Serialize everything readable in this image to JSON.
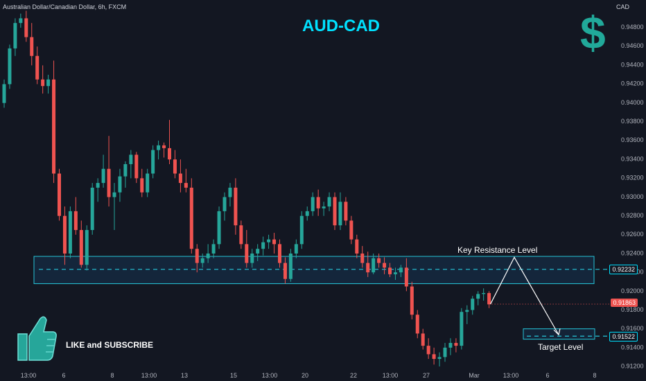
{
  "header": {
    "symbol": "Australian Dollar/Canadian Dollar, 6h, FXCM",
    "currency": "CAD"
  },
  "title": "AUD-CAD",
  "dollar_glyph": "$",
  "like_text": "LIKE and SUBSCRIBE",
  "annotations": {
    "resistance": "Key Resistance Level",
    "target": "Target Level"
  },
  "tags": {
    "resistance_value": "0.92232",
    "current_value": "0.91863",
    "target_value": "0.91522"
  },
  "colors": {
    "bg": "#131722",
    "up": "#26a69a",
    "down": "#ef5350",
    "zone": "#1e6a7a",
    "title": "#00e1ff",
    "dollar": "#21a99a"
  },
  "icons": [
    "thumbs-up-icon",
    "dollar-icon"
  ],
  "chart_data": {
    "type": "candlestick",
    "title": "AUD-CAD",
    "ylim": [
      0.9112,
      0.95
    ],
    "yticks": [
      "0.94800",
      "0.94600",
      "0.94400",
      "0.94200",
      "0.94000",
      "0.93800",
      "0.93600",
      "0.93400",
      "0.93200",
      "0.93000",
      "0.92800",
      "0.92600",
      "0.92400",
      "0.92200",
      "0.92000",
      "0.91800",
      "0.91600",
      "0.91400",
      "0.91200"
    ],
    "xticks": [
      "13:00",
      "6",
      "8",
      "13:00",
      "13",
      "15",
      "13:00",
      "20",
      "22",
      "13:00",
      "27",
      "Mar",
      "13:00",
      "6",
      "8"
    ],
    "resistance_zone": [
      0.9208,
      0.9237
    ],
    "resistance_line": 0.92232,
    "target_zone": [
      0.9149,
      0.916
    ],
    "target_line": 0.91522,
    "current_price": 0.91863,
    "projection": [
      [
        0.91863,
        0.9236
      ],
      [
        0.9236,
        0.91522
      ]
    ],
    "candles": [
      [
        0.94,
        0.9425,
        0.9395,
        0.942
      ],
      [
        0.942,
        0.9462,
        0.9415,
        0.9458
      ],
      [
        0.9458,
        0.949,
        0.945,
        0.9485
      ],
      [
        0.9485,
        0.9495,
        0.948,
        0.949
      ],
      [
        0.949,
        0.9498,
        0.9465,
        0.947
      ],
      [
        0.947,
        0.9485,
        0.944,
        0.945
      ],
      [
        0.945,
        0.946,
        0.942,
        0.9425
      ],
      [
        0.9425,
        0.944,
        0.941,
        0.9418
      ],
      [
        0.9418,
        0.943,
        0.941,
        0.9425
      ],
      [
        0.9425,
        0.9445,
        0.9315,
        0.9325
      ],
      [
        0.9325,
        0.933,
        0.9275,
        0.928
      ],
      [
        0.928,
        0.929,
        0.9228,
        0.924
      ],
      [
        0.924,
        0.929,
        0.9235,
        0.9285
      ],
      [
        0.9285,
        0.93,
        0.926,
        0.9265
      ],
      [
        0.9265,
        0.9275,
        0.9225,
        0.9228
      ],
      [
        0.9228,
        0.927,
        0.9222,
        0.9265
      ],
      [
        0.9265,
        0.9315,
        0.926,
        0.931
      ],
      [
        0.931,
        0.932,
        0.9295,
        0.9315
      ],
      [
        0.9315,
        0.9345,
        0.931,
        0.933
      ],
      [
        0.933,
        0.9365,
        0.929,
        0.93
      ],
      [
        0.93,
        0.9315,
        0.9265,
        0.9305
      ],
      [
        0.9305,
        0.933,
        0.9295,
        0.9322
      ],
      [
        0.9322,
        0.9338,
        0.931,
        0.9335
      ],
      [
        0.9335,
        0.935,
        0.932,
        0.9345
      ],
      [
        0.9345,
        0.9348,
        0.9315,
        0.932
      ],
      [
        0.932,
        0.933,
        0.93,
        0.9305
      ],
      [
        0.9305,
        0.933,
        0.93,
        0.9325
      ],
      [
        0.9325,
        0.9355,
        0.932,
        0.935
      ],
      [
        0.935,
        0.936,
        0.934,
        0.9355
      ],
      [
        0.9355,
        0.9358,
        0.9342,
        0.9352
      ],
      [
        0.9352,
        0.9382,
        0.9335,
        0.934
      ],
      [
        0.934,
        0.935,
        0.932,
        0.9325
      ],
      [
        0.9325,
        0.934,
        0.9305,
        0.9315
      ],
      [
        0.9315,
        0.933,
        0.9305,
        0.931
      ],
      [
        0.931,
        0.932,
        0.924,
        0.9245
      ],
      [
        0.9245,
        0.925,
        0.922,
        0.923
      ],
      [
        0.923,
        0.924,
        0.9225,
        0.9235
      ],
      [
        0.9235,
        0.925,
        0.923,
        0.924
      ],
      [
        0.924,
        0.9255,
        0.9235,
        0.925
      ],
      [
        0.925,
        0.929,
        0.9245,
        0.9285
      ],
      [
        0.9285,
        0.9305,
        0.9275,
        0.93
      ],
      [
        0.93,
        0.9315,
        0.929,
        0.931
      ],
      [
        0.931,
        0.932,
        0.926,
        0.927
      ],
      [
        0.927,
        0.9275,
        0.9245,
        0.925
      ],
      [
        0.925,
        0.9265,
        0.9225,
        0.923
      ],
      [
        0.923,
        0.9245,
        0.9225,
        0.924
      ],
      [
        0.924,
        0.925,
        0.9232,
        0.9245
      ],
      [
        0.9245,
        0.9258,
        0.9238,
        0.9252
      ],
      [
        0.9252,
        0.926,
        0.9245,
        0.9255
      ],
      [
        0.9255,
        0.9262,
        0.924,
        0.925
      ],
      [
        0.925,
        0.9255,
        0.9225,
        0.923
      ],
      [
        0.923,
        0.9236,
        0.9208,
        0.9213
      ],
      [
        0.9213,
        0.9245,
        0.921,
        0.924
      ],
      [
        0.924,
        0.9255,
        0.9235,
        0.925
      ],
      [
        0.925,
        0.9285,
        0.9245,
        0.928
      ],
      [
        0.928,
        0.929,
        0.9275,
        0.9285
      ],
      [
        0.9285,
        0.9305,
        0.928,
        0.93
      ],
      [
        0.93,
        0.9308,
        0.928,
        0.9288
      ],
      [
        0.9288,
        0.9295,
        0.928,
        0.929
      ],
      [
        0.929,
        0.9305,
        0.9285,
        0.93
      ],
      [
        0.93,
        0.9305,
        0.9265,
        0.927
      ],
      [
        0.927,
        0.9305,
        0.9265,
        0.9295
      ],
      [
        0.9295,
        0.93,
        0.927,
        0.9275
      ],
      [
        0.9275,
        0.928,
        0.925,
        0.9255
      ],
      [
        0.9255,
        0.926,
        0.9235,
        0.924
      ],
      [
        0.924,
        0.9248,
        0.9225,
        0.923
      ],
      [
        0.923,
        0.9242,
        0.9215,
        0.922
      ],
      [
        0.922,
        0.924,
        0.9218,
        0.9235
      ],
      [
        0.9235,
        0.924,
        0.9225,
        0.923
      ],
      [
        0.923,
        0.9236,
        0.9218,
        0.9225
      ],
      [
        0.9225,
        0.923,
        0.9215,
        0.9218
      ],
      [
        0.9218,
        0.9225,
        0.9212,
        0.922
      ],
      [
        0.922,
        0.9228,
        0.9215,
        0.9225
      ],
      [
        0.9225,
        0.9235,
        0.92,
        0.9205
      ],
      [
        0.9205,
        0.921,
        0.917,
        0.9175
      ],
      [
        0.9175,
        0.918,
        0.915,
        0.9155
      ],
      [
        0.9155,
        0.916,
        0.9138,
        0.9142
      ],
      [
        0.9142,
        0.915,
        0.9128,
        0.9133
      ],
      [
        0.9133,
        0.914,
        0.9122,
        0.9128
      ],
      [
        0.9128,
        0.9135,
        0.912,
        0.913
      ],
      [
        0.913,
        0.9145,
        0.9125,
        0.914
      ],
      [
        0.914,
        0.915,
        0.9132,
        0.9145
      ],
      [
        0.9145,
        0.915,
        0.9135,
        0.9142
      ],
      [
        0.9142,
        0.9182,
        0.9138,
        0.9178
      ],
      [
        0.9178,
        0.9185,
        0.9165,
        0.918
      ],
      [
        0.918,
        0.9195,
        0.9175,
        0.9192
      ],
      [
        0.9192,
        0.92,
        0.9185,
        0.9197
      ],
      [
        0.9197,
        0.9203,
        0.919,
        0.9198
      ],
      [
        0.9198,
        0.92,
        0.9182,
        0.9186
      ]
    ]
  }
}
